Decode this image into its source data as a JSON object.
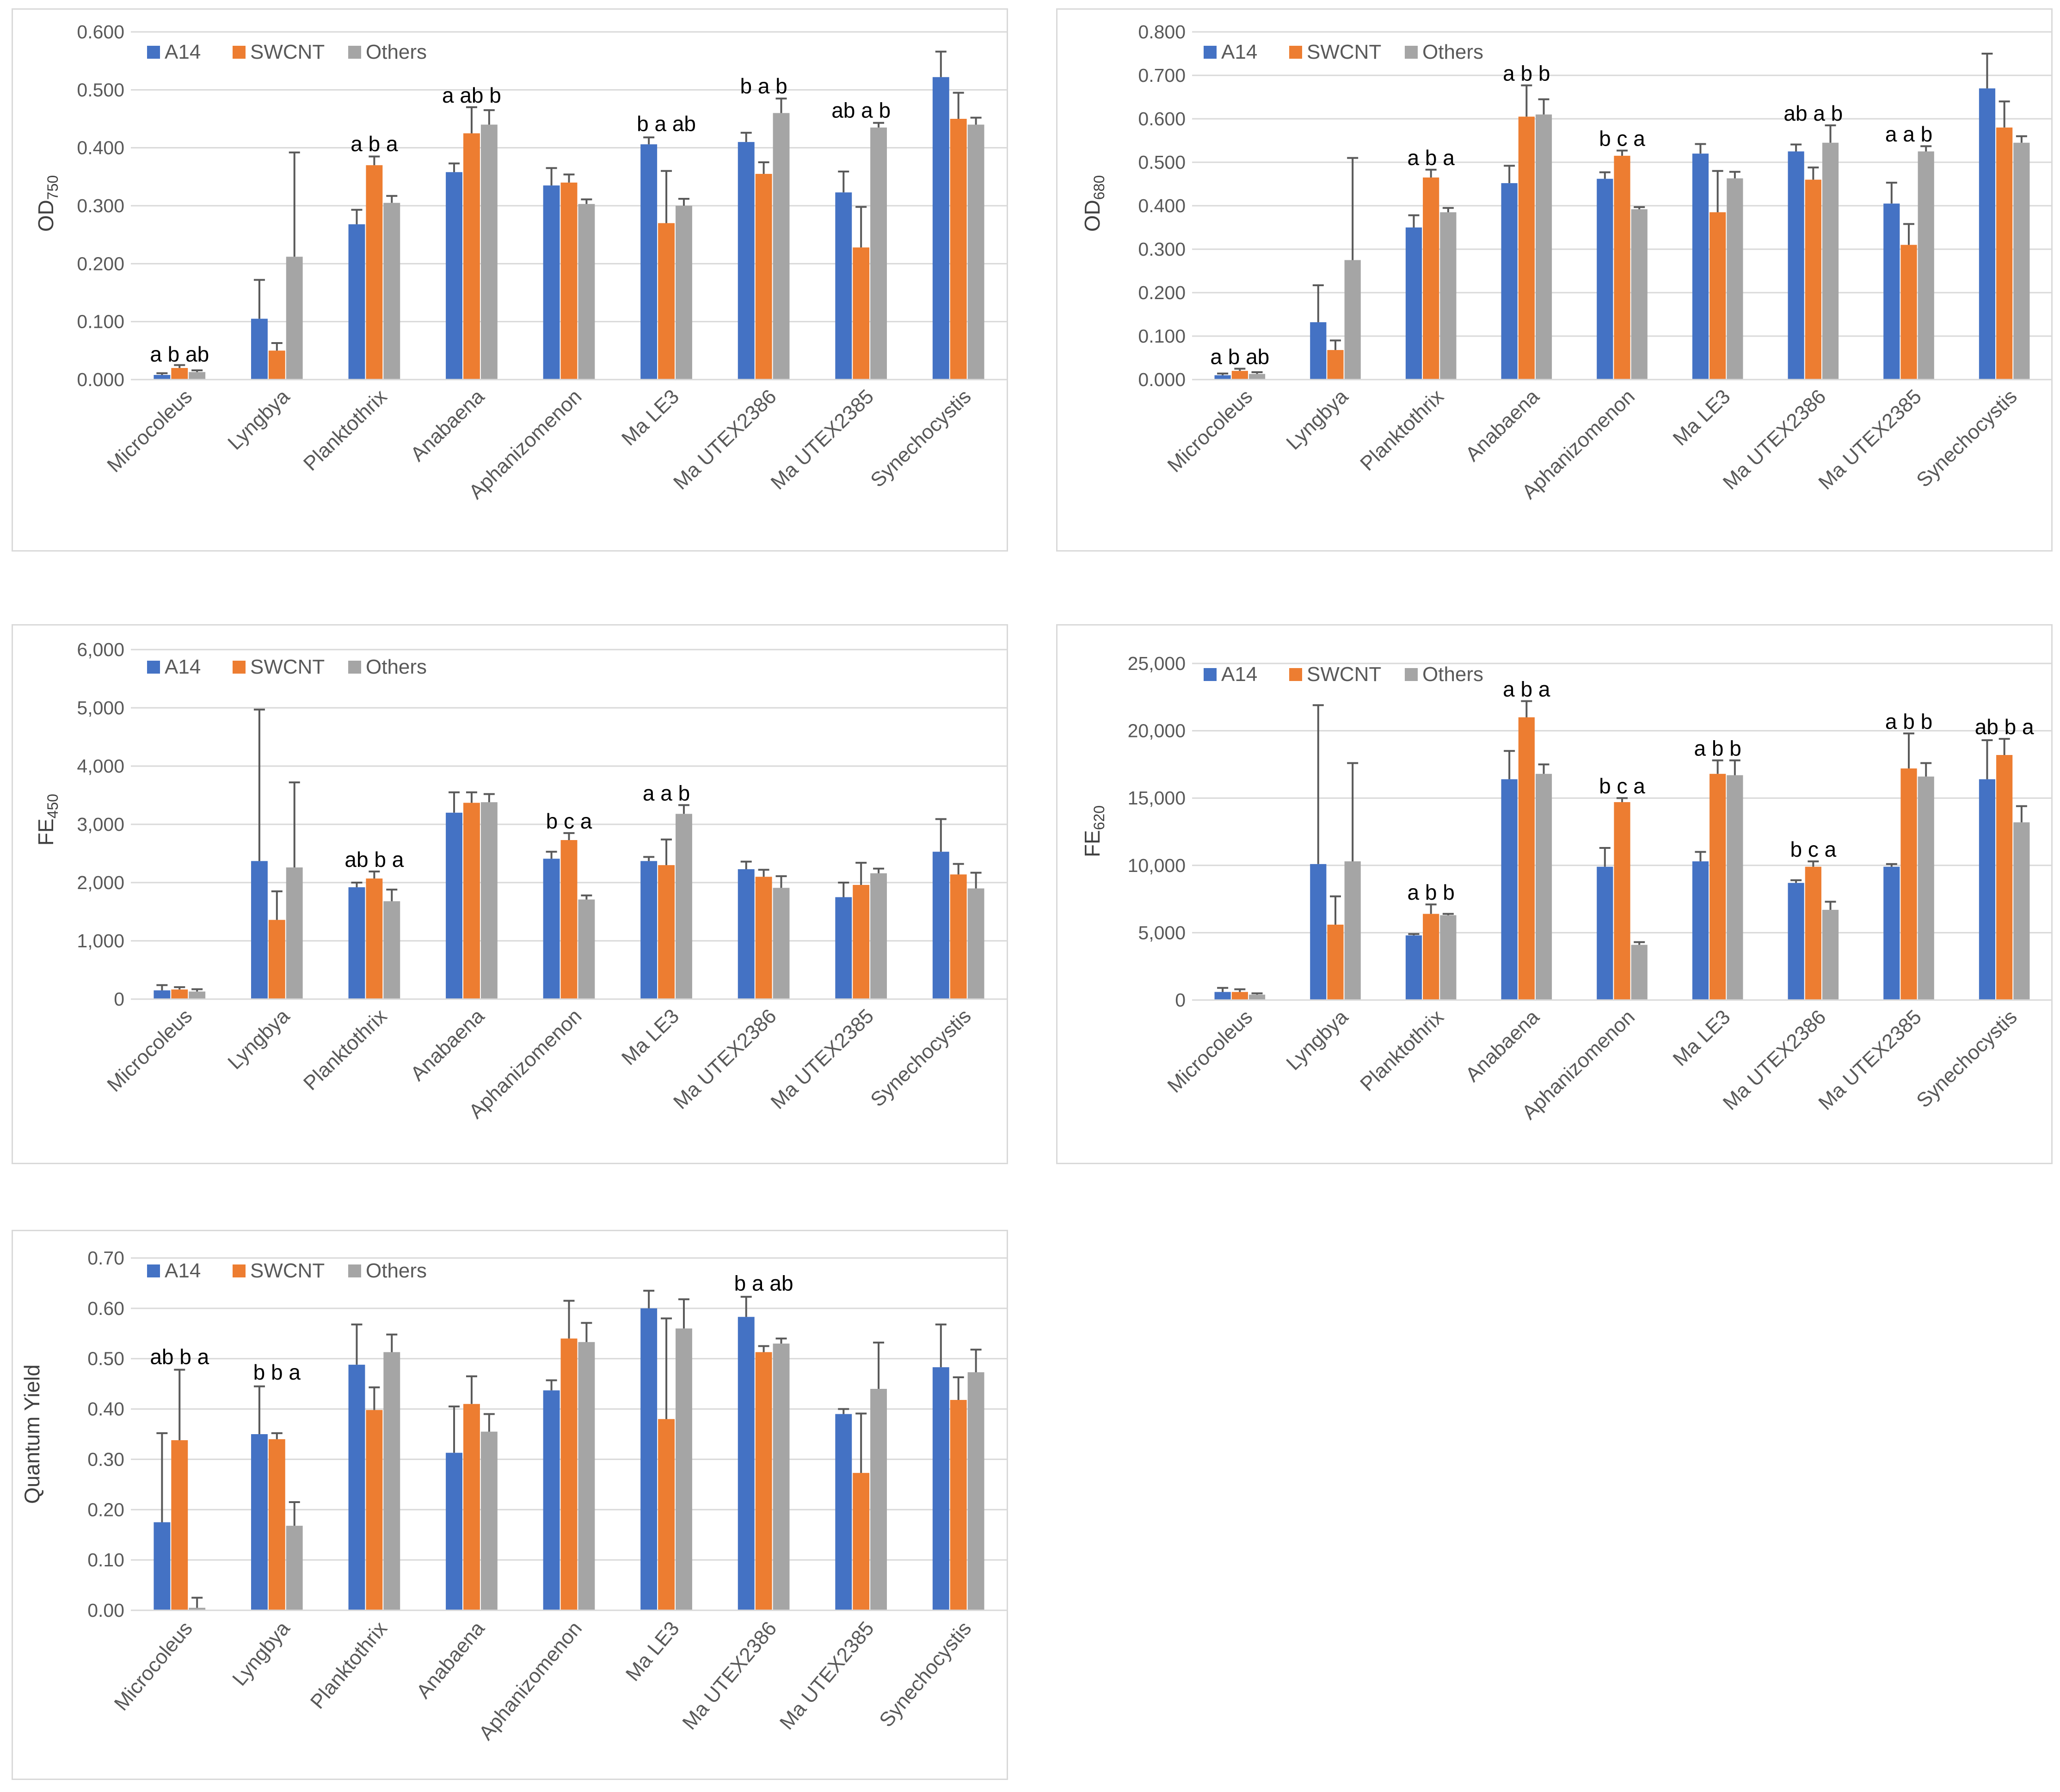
{
  "colors": {
    "A14": "#4472c4",
    "SWCNT": "#ed7d31",
    "Others": "#a5a5a5",
    "grid": "#d9d9d9",
    "err": "#595959"
  },
  "chart_data": [
    {
      "id": "od750",
      "type": "bar",
      "ylabel": "OD",
      "ylabel_sub": "750",
      "legend": [
        "A14",
        "SWCNT",
        "Others"
      ],
      "categories": [
        "Microcoleus",
        "Lyngbya",
        "Planktothrix",
        "Anabaena",
        "Aphanizomenon",
        "Ma LE3",
        "Ma UTEX2386",
        "Ma UTEX2385",
        "Synechocystis"
      ],
      "ylim": [
        0,
        0.6
      ],
      "yticks": [
        "0.000",
        "0.100",
        "0.200",
        "0.300",
        "0.400",
        "0.500",
        "0.600"
      ],
      "series": [
        {
          "name": "A14",
          "values": [
            0.008,
            0.105,
            0.268,
            0.358,
            0.335,
            0.406,
            0.41,
            0.323,
            0.522
          ],
          "errors": [
            0.003,
            0.067,
            0.025,
            0.015,
            0.03,
            0.012,
            0.016,
            0.036,
            0.044
          ]
        },
        {
          "name": "SWCNT",
          "values": [
            0.02,
            0.05,
            0.37,
            0.425,
            0.34,
            0.27,
            0.355,
            0.228,
            0.45
          ],
          "errors": [
            0.005,
            0.013,
            0.015,
            0.045,
            0.014,
            0.09,
            0.02,
            0.07,
            0.045
          ]
        },
        {
          "name": "Others",
          "values": [
            0.013,
            0.212,
            0.305,
            0.44,
            0.303,
            0.3,
            0.46,
            0.435,
            0.44
          ],
          "errors": [
            0.003,
            0.18,
            0.012,
            0.025,
            0.008,
            0.012,
            0.025,
            0.008,
            0.012
          ]
        }
      ],
      "sig_labels": [
        "a b ab",
        "",
        "a b a",
        "a ab b",
        "",
        "b a ab",
        "b a b",
        "ab a b",
        ""
      ],
      "sig_values": [
        0.023,
        0,
        0.386,
        0.47,
        0,
        0.421,
        0.486,
        0.444,
        0
      ]
    },
    {
      "id": "od680",
      "type": "bar",
      "ylabel": "OD",
      "ylabel_sub": "680",
      "legend": [
        "A14",
        "SWCNT",
        "Others"
      ],
      "categories": [
        "Microcoleus",
        "Lyngbya",
        "Planktothrix",
        "Anabaena",
        "Aphanizomenon",
        "Ma LE3",
        "Ma UTEX2386",
        "Ma UTEX2385",
        "Synechocystis"
      ],
      "ylim": [
        0,
        0.8
      ],
      "yticks": [
        "0.000",
        "0.100",
        "0.200",
        "0.300",
        "0.400",
        "0.500",
        "0.600",
        "0.700",
        "0.800"
      ],
      "series": [
        {
          "name": "A14",
          "values": [
            0.01,
            0.132,
            0.35,
            0.452,
            0.462,
            0.52,
            0.525,
            0.405,
            0.67
          ],
          "errors": [
            0.004,
            0.085,
            0.028,
            0.04,
            0.015,
            0.022,
            0.016,
            0.048,
            0.08
          ]
        },
        {
          "name": "SWCNT",
          "values": [
            0.02,
            0.068,
            0.465,
            0.605,
            0.515,
            0.385,
            0.46,
            0.31,
            0.58
          ],
          "errors": [
            0.005,
            0.022,
            0.018,
            0.072,
            0.012,
            0.095,
            0.028,
            0.048,
            0.06
          ]
        },
        {
          "name": "Others",
          "values": [
            0.013,
            0.275,
            0.385,
            0.61,
            0.392,
            0.463,
            0.545,
            0.525,
            0.545
          ],
          "errors": [
            0.004,
            0.235,
            0.01,
            0.035,
            0.005,
            0.015,
            0.04,
            0.012,
            0.015
          ]
        }
      ],
      "sig_labels": [
        "a b ab",
        "",
        "a b a",
        "a b b",
        "b c a",
        "",
        "ab a b",
        "a a b",
        ""
      ],
      "sig_values": [
        0.025,
        0,
        0.483,
        0.677,
        0.527,
        0,
        0.585,
        0.537,
        0
      ]
    },
    {
      "id": "fe450",
      "type": "bar",
      "ylabel": "FE",
      "ylabel_sub": "450",
      "legend": [
        "A14",
        "SWCNT",
        "Others"
      ],
      "categories": [
        "Microcoleus",
        "Lyngbya",
        "Planktothrix",
        "Anabaena",
        "Aphanizomenon",
        "Ma LE3",
        "Ma UTEX2386",
        "Ma UTEX2385",
        "Synechocystis"
      ],
      "ylim": [
        0,
        6000
      ],
      "yticks": [
        "0",
        "1,000",
        "2,000",
        "3,000",
        "4,000",
        "5,000",
        "6,000"
      ],
      "series": [
        {
          "name": "A14",
          "values": [
            150,
            2370,
            1920,
            3200,
            2410,
            2370,
            2230,
            1750,
            2530
          ],
          "errors": [
            90,
            2600,
            80,
            350,
            120,
            70,
            130,
            250,
            560
          ]
        },
        {
          "name": "SWCNT",
          "values": [
            165,
            1360,
            2070,
            3370,
            2730,
            2300,
            2100,
            1960,
            2140
          ],
          "errors": [
            40,
            490,
            120,
            180,
            120,
            440,
            120,
            380,
            180
          ]
        },
        {
          "name": "Others",
          "values": [
            130,
            2260,
            1680,
            3380,
            1710,
            3180,
            1910,
            2160,
            1900
          ],
          "errors": [
            40,
            1460,
            200,
            140,
            70,
            150,
            200,
            80,
            270
          ]
        }
      ],
      "sig_labels": [
        "",
        "",
        "ab b a",
        "",
        "b c a",
        "a a b",
        "",
        "",
        ""
      ],
      "sig_values": [
        0,
        0,
        2190,
        0,
        2850,
        3330,
        0,
        0,
        0
      ]
    },
    {
      "id": "fe620",
      "type": "bar",
      "ylabel": "FE",
      "ylabel_sub": "620",
      "legend": [
        "A14",
        "SWCNT",
        "Others"
      ],
      "categories": [
        "Microcoleus",
        "Lyngbya",
        "Planktothrix",
        "Anabaena",
        "Aphanizomenon",
        "Ma LE3",
        "Ma UTEX2386",
        "Ma UTEX2385",
        "Synechocystis"
      ],
      "ylim": [
        0,
        25000
      ],
      "yticks": [
        "0",
        "5,000",
        "10,000",
        "15,000",
        "20,000",
        "25,000"
      ],
      "series": [
        {
          "name": "A14",
          "values": [
            600,
            10100,
            4800,
            16400,
            9900,
            10300,
            8700,
            9900,
            16400
          ],
          "errors": [
            300,
            11800,
            100,
            2100,
            1400,
            700,
            200,
            200,
            2900
          ]
        },
        {
          "name": "SWCNT",
          "values": [
            600,
            5600,
            6400,
            21000,
            14700,
            16800,
            9900,
            17200,
            18200
          ],
          "errors": [
            200,
            2100,
            700,
            1200,
            300,
            1000,
            400,
            2600,
            1200
          ]
        },
        {
          "name": "Others",
          "values": [
            400,
            10300,
            6300,
            16800,
            4100,
            16700,
            6700,
            16600,
            13200
          ],
          "errors": [
            100,
            7300,
            100,
            700,
            200,
            1100,
            600,
            1000,
            1200
          ]
        }
      ],
      "sig_labels": [
        "",
        "",
        "a b b",
        "a b a",
        "b c a",
        "a b b",
        "b c a",
        "a b b",
        "ab b a"
      ],
      "sig_values": [
        0,
        0,
        7100,
        22200,
        15000,
        17800,
        10300,
        19800,
        19400
      ]
    },
    {
      "id": "qy",
      "type": "bar",
      "ylabel": "Quantum Yield",
      "ylabel_sub": "",
      "legend": [
        "A14",
        "SWCNT",
        "Others"
      ],
      "categories": [
        "Microcoleus",
        "Lyngbya",
        "Planktothrix",
        "Anabaena",
        "Aphanizomenon",
        "Ma LE3",
        "Ma UTEX2386",
        "Ma UTEX2385",
        "Synechocystis"
      ],
      "ylim": [
        0,
        0.7
      ],
      "yticks": [
        "0.00",
        "0.10",
        "0.20",
        "0.30",
        "0.40",
        "0.50",
        "0.60",
        "0.70"
      ],
      "series": [
        {
          "name": "A14",
          "values": [
            0.175,
            0.35,
            0.488,
            0.313,
            0.437,
            0.6,
            0.583,
            0.39,
            0.483
          ],
          "errors": [
            0.177,
            0.095,
            0.08,
            0.092,
            0.02,
            0.035,
            0.04,
            0.01,
            0.085
          ]
        },
        {
          "name": "SWCNT",
          "values": [
            0.338,
            0.34,
            0.398,
            0.41,
            0.54,
            0.38,
            0.513,
            0.273,
            0.418
          ],
          "errors": [
            0.14,
            0.012,
            0.045,
            0.055,
            0.075,
            0.2,
            0.012,
            0.118,
            0.045
          ]
        },
        {
          "name": "Others",
          "values": [
            0.005,
            0.168,
            0.513,
            0.355,
            0.533,
            0.56,
            0.53,
            0.44,
            0.473
          ],
          "errors": [
            0.02,
            0.047,
            0.035,
            0.035,
            0.038,
            0.058,
            0.01,
            0.092,
            0.045
          ]
        }
      ],
      "sig_labels": [
        "ab b a",
        "b b a",
        "",
        "",
        "",
        "",
        "b a ab",
        "",
        ""
      ],
      "sig_values": [
        0.48,
        0.449,
        0,
        0,
        0,
        0,
        0.626,
        0,
        0
      ]
    }
  ]
}
